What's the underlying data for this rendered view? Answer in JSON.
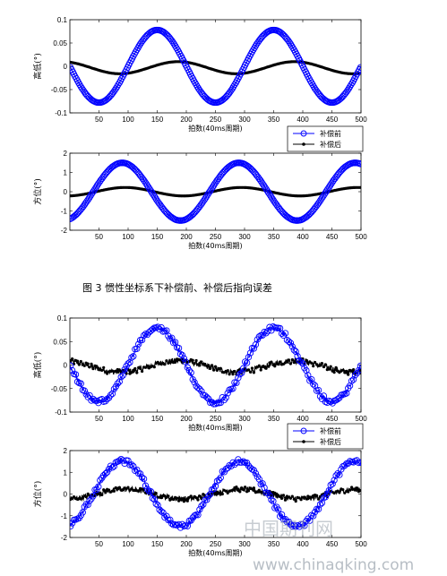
{
  "caption": "图 3 惯性坐标系下补偿前、补偿后指向误差",
  "watermark": {
    "cn": "中国期刊网",
    "url": "www.chinaqking.com"
  },
  "colors": {
    "before": "#0000ff",
    "after": "#000000"
  },
  "chart_data": [
    {
      "type": "line",
      "noisy": false,
      "xlabel": "拍数(40ms周期)",
      "ylabel": "高低(°)",
      "xlim": [
        0,
        500
      ],
      "ylim": [
        -0.1,
        0.1
      ],
      "xticks": [
        "50",
        "100",
        "150",
        "200",
        "250",
        "300",
        "350",
        "400",
        "450",
        "500"
      ],
      "yticks": [
        "0.1",
        "0.05",
        "0",
        "-0.05",
        "-0.1"
      ],
      "legend": null,
      "series": [
        {
          "name": "补偿前",
          "amp": 0.078,
          "phase": 300,
          "offset": 0,
          "color": "#0000ff",
          "marker": "circle"
        },
        {
          "name": "补偿后",
          "amp": 0.013,
          "phase": -64,
          "offset": -0.003,
          "color": "#000000",
          "marker": "dot"
        }
      ]
    },
    {
      "type": "line",
      "noisy": false,
      "xlabel": "拍数(40ms周期)",
      "ylabel": "方位(°)",
      "xlim": [
        0,
        500
      ],
      "ylim": [
        -2,
        2
      ],
      "xticks": [
        "50",
        "100",
        "150",
        "200",
        "250",
        "300",
        "350",
        "400",
        "450",
        "500"
      ],
      "yticks": [
        "2",
        "1",
        "0",
        "-1",
        "-2"
      ],
      "legend": {
        "position": "top-right",
        "entries": [
          "补偿前",
          "补偿后"
        ]
      },
      "series": [
        {
          "name": "补偿前",
          "amp": 1.5,
          "phase": 240,
          "offset": 0,
          "color": "#0000ff",
          "marker": "circle"
        },
        {
          "name": "补偿后",
          "amp": 0.22,
          "phase": 245,
          "offset": 0,
          "color": "#000000",
          "marker": "dot"
        }
      ]
    },
    {
      "type": "line",
      "noisy": true,
      "xlabel": "拍数(40ms周期)",
      "ylabel": "高低(°)",
      "xlim": [
        0,
        500
      ],
      "ylim": [
        -0.1,
        0.1
      ],
      "xticks": [
        "50",
        "100",
        "150",
        "200",
        "250",
        "300",
        "350",
        "400",
        "450",
        "500"
      ],
      "yticks": [
        "0.1",
        "0.05",
        "0",
        "-0.05",
        "-0.1"
      ],
      "legend": null,
      "series": [
        {
          "name": "补偿前",
          "amp": 0.078,
          "phase": 300,
          "offset": 0,
          "color": "#0000ff",
          "marker": "circle"
        },
        {
          "name": "补偿后",
          "amp": 0.012,
          "phase": -64,
          "offset": -0.003,
          "color": "#000000",
          "marker": "dot"
        }
      ]
    },
    {
      "type": "line",
      "noisy": true,
      "xlabel": "拍数(40ms周期)",
      "ylabel": "方位(°)",
      "xlim": [
        0,
        500
      ],
      "ylim": [
        -2,
        2
      ],
      "xticks": [
        "50",
        "100",
        "150",
        "200",
        "250",
        "300",
        "350",
        "400",
        "450",
        "500"
      ],
      "yticks": [
        "2",
        "1",
        "0",
        "-1",
        "-2"
      ],
      "legend": {
        "position": "top-right",
        "entries": [
          "补偿前",
          "补偿后"
        ]
      },
      "series": [
        {
          "name": "补偿前",
          "amp": 1.5,
          "phase": 240,
          "offset": 0,
          "color": "#0000ff",
          "marker": "circle"
        },
        {
          "name": "补偿后",
          "amp": 0.22,
          "phase": 245,
          "offset": 0,
          "color": "#000000",
          "marker": "dot"
        }
      ]
    }
  ]
}
